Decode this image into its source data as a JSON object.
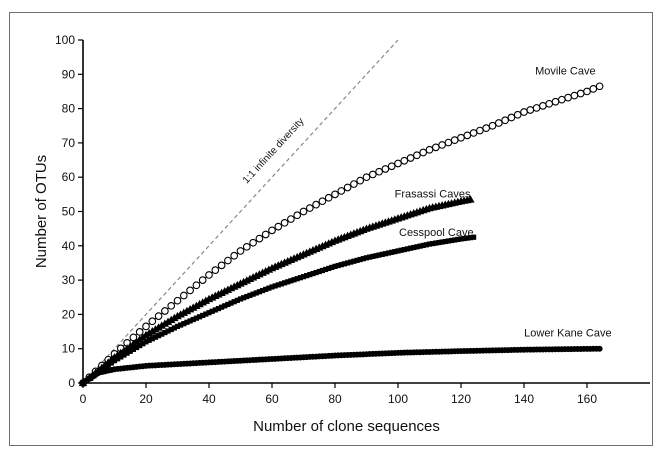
{
  "chart_data": {
    "type": "scatter",
    "xlabel": "Number of clone sequences",
    "ylabel": "Number of OTUs",
    "xlim": [
      0,
      180
    ],
    "ylim": [
      0,
      100
    ],
    "x_ticks": [
      "0",
      "20",
      "40",
      "60",
      "80",
      "100",
      "120",
      "140",
      "160"
    ],
    "y_ticks": [
      "0",
      "10",
      "20",
      "30",
      "40",
      "50",
      "60",
      "70",
      "80",
      "90",
      "100"
    ],
    "grid": false,
    "legend": "none",
    "reference_line": {
      "label": "1:1 infinite diversity",
      "x": [
        0,
        100
      ],
      "y": [
        0,
        100
      ],
      "style": "dashed",
      "color": "#888888"
    },
    "series": [
      {
        "name": "Movile Cave",
        "marker": "open-circle",
        "color": "#000000",
        "n_max": 164,
        "points": [
          [
            0,
            0
          ],
          [
            10,
            8.5
          ],
          [
            20,
            16.5
          ],
          [
            30,
            24
          ],
          [
            40,
            31.5
          ],
          [
            50,
            38.5
          ],
          [
            60,
            44.5
          ],
          [
            70,
            50
          ],
          [
            80,
            55
          ],
          [
            90,
            60
          ],
          [
            100,
            64
          ],
          [
            110,
            68
          ],
          [
            120,
            71.5
          ],
          [
            130,
            75
          ],
          [
            140,
            79
          ],
          [
            150,
            82
          ],
          [
            160,
            85
          ],
          [
            164,
            86.5
          ]
        ]
      },
      {
        "name": "Frasassi Caves",
        "marker": "filled-triangle",
        "color": "#000000",
        "n_max": 123,
        "points": [
          [
            0,
            0
          ],
          [
            10,
            7.5
          ],
          [
            20,
            14
          ],
          [
            30,
            19.5
          ],
          [
            40,
            24.5
          ],
          [
            50,
            29
          ],
          [
            60,
            33.5
          ],
          [
            70,
            37.5
          ],
          [
            80,
            41.5
          ],
          [
            90,
            45
          ],
          [
            100,
            48
          ],
          [
            110,
            51
          ],
          [
            120,
            53
          ],
          [
            123,
            53.5
          ]
        ]
      },
      {
        "name": "Cesspool Cave",
        "marker": "filled-square",
        "color": "#000000",
        "n_max": 124,
        "points": [
          [
            0,
            0
          ],
          [
            10,
            6.5
          ],
          [
            20,
            12
          ],
          [
            30,
            16.5
          ],
          [
            40,
            20.5
          ],
          [
            50,
            24.5
          ],
          [
            60,
            28
          ],
          [
            70,
            31
          ],
          [
            80,
            34
          ],
          [
            90,
            36.5
          ],
          [
            100,
            38.5
          ],
          [
            110,
            40.5
          ],
          [
            120,
            42
          ],
          [
            124,
            42.5
          ]
        ]
      },
      {
        "name": "Lower Kane Cave",
        "marker": "filled-circle",
        "color": "#000000",
        "n_max": 164,
        "points": [
          [
            0,
            0
          ],
          [
            5,
            3
          ],
          [
            10,
            4
          ],
          [
            20,
            5
          ],
          [
            40,
            6
          ],
          [
            60,
            7
          ],
          [
            80,
            8
          ],
          [
            100,
            8.8
          ],
          [
            120,
            9.3
          ],
          [
            140,
            9.7
          ],
          [
            164,
            10
          ]
        ]
      }
    ]
  }
}
